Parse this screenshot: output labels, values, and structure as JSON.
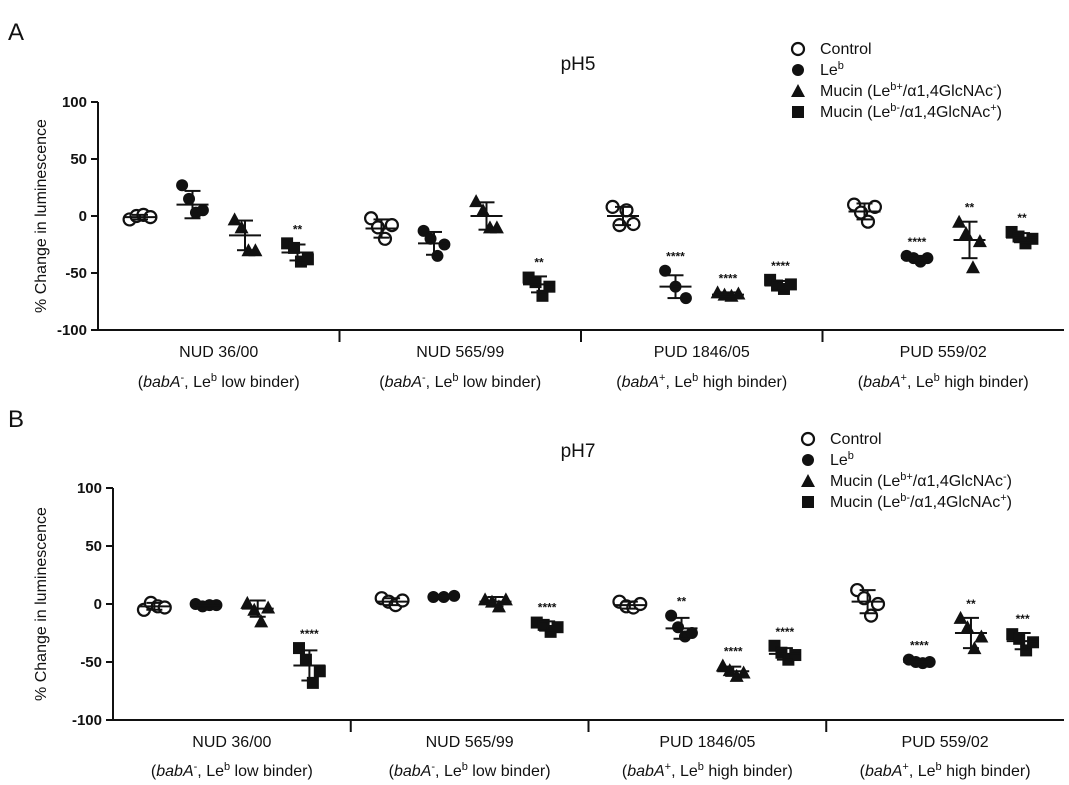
{
  "chart_data": [
    {
      "type": "scatter",
      "panel_label": "A",
      "title": "pH5",
      "ylabel": "% Change in luminescence",
      "ylim": [
        -100,
        100
      ],
      "yticks": [
        100,
        50,
        0,
        -50,
        -100
      ],
      "legend_position": "top-right",
      "legend": [
        {
          "marker": "circle-open",
          "parts": [
            {
              "t": "Control"
            }
          ]
        },
        {
          "marker": "circle",
          "parts": [
            {
              "t": "Le"
            },
            {
              "t": "b",
              "sup": true
            }
          ]
        },
        {
          "marker": "triangle",
          "parts": [
            {
              "t": "Mucin (Le"
            },
            {
              "t": "b+",
              "sup": true
            },
            {
              "t": "/α1,4GlcNAc"
            },
            {
              "t": "-",
              "sup": true
            },
            {
              "t": ")"
            }
          ]
        },
        {
          "marker": "square",
          "parts": [
            {
              "t": "Mucin (Le"
            },
            {
              "t": "b-",
              "sup": true
            },
            {
              "t": "/α1,4GlcNAc"
            },
            {
              "t": "+",
              "sup": true
            },
            {
              "t": ")"
            }
          ]
        }
      ],
      "groups": [
        {
          "name": "NUD 36/00",
          "subtitle": [
            {
              "t": "("
            },
            {
              "t": "babA",
              "i": true
            },
            {
              "t": "-",
              "sup": true
            },
            {
              "t": ", Le"
            },
            {
              "t": "b",
              "sup": true
            },
            {
              "t": " low binder)"
            }
          ],
          "series": [
            {
              "marker": "circle-open",
              "points": [
                -3,
                0,
                1,
                -1
              ],
              "mean": -1,
              "sd": 2,
              "sig": ""
            },
            {
              "marker": "circle",
              "points": [
                27,
                15,
                3,
                5
              ],
              "mean": 10,
              "sd": 12,
              "sig": ""
            },
            {
              "marker": "triangle",
              "points": [
                -3,
                -10,
                -30,
                -30
              ],
              "mean": -17,
              "sd": 13,
              "sig": ""
            },
            {
              "marker": "square",
              "points": [
                -24,
                -28,
                -40,
                -38
              ],
              "mean": -32,
              "sd": 7,
              "sig": "**"
            }
          ]
        },
        {
          "name": "NUD 565/99",
          "subtitle": [
            {
              "t": "("
            },
            {
              "t": "babA",
              "i": true
            },
            {
              "t": "-",
              "sup": true
            },
            {
              "t": ", Le"
            },
            {
              "t": "b",
              "sup": true
            },
            {
              "t": " low binder)"
            }
          ],
          "series": [
            {
              "marker": "circle-open",
              "points": [
                -2,
                -10,
                -20,
                -8
              ],
              "mean": -11,
              "sd": 8,
              "sig": ""
            },
            {
              "marker": "circle",
              "points": [
                -13,
                -20,
                -35,
                -25
              ],
              "mean": -24,
              "sd": 10,
              "sig": ""
            },
            {
              "marker": "triangle",
              "points": [
                13,
                5,
                -10,
                -10
              ],
              "mean": 0,
              "sd": 12,
              "sig": ""
            },
            {
              "marker": "square",
              "points": [
                -54,
                -58,
                -70,
                -62
              ],
              "mean": -60,
              "sd": 7,
              "sig": "**"
            }
          ]
        },
        {
          "name": "PUD 1846/05",
          "subtitle": [
            {
              "t": "("
            },
            {
              "t": "babA",
              "i": true
            },
            {
              "t": "+",
              "sup": true
            },
            {
              "t": ", Le"
            },
            {
              "t": "b",
              "sup": true
            },
            {
              "t": " high binder)"
            }
          ],
          "series": [
            {
              "marker": "circle-open",
              "points": [
                8,
                -8,
                5,
                -7
              ],
              "mean": 0,
              "sd": 8,
              "sig": ""
            },
            {
              "marker": "circle",
              "points": [
                -48,
                -62,
                -72
              ],
              "mean": -62,
              "sd": 10,
              "sig": "****"
            },
            {
              "marker": "triangle",
              "points": [
                -67,
                -69,
                -70,
                -68
              ],
              "mean": -69,
              "sd": 2,
              "sig": "****"
            },
            {
              "marker": "square",
              "points": [
                -56,
                -61,
                -64,
                -60
              ],
              "mean": -61,
              "sd": 4,
              "sig": "****"
            }
          ]
        },
        {
          "name": "PUD 559/02",
          "subtitle": [
            {
              "t": "("
            },
            {
              "t": "babA",
              "i": true
            },
            {
              "t": "+",
              "sup": true
            },
            {
              "t": ", Le"
            },
            {
              "t": "b",
              "sup": true
            },
            {
              "t": " high binder)"
            }
          ],
          "series": [
            {
              "marker": "circle-open",
              "points": [
                10,
                3,
                -5,
                8
              ],
              "mean": 4,
              "sd": 7,
              "sig": ""
            },
            {
              "marker": "circle",
              "points": [
                -35,
                -37,
                -40,
                -37
              ],
              "mean": -37,
              "sd": 2,
              "sig": "****"
            },
            {
              "marker": "triangle",
              "points": [
                -5,
                -15,
                -45,
                -22
              ],
              "mean": -21,
              "sd": 16,
              "sig": "**"
            },
            {
              "marker": "square",
              "points": [
                -14,
                -18,
                -24,
                -20
              ],
              "mean": -19,
              "sd": 4,
              "sig": "**"
            }
          ]
        }
      ]
    },
    {
      "type": "scatter",
      "panel_label": "B",
      "title": "pH7",
      "ylabel": "% Change in luminescence",
      "ylim": [
        -100,
        100
      ],
      "yticks": [
        100,
        50,
        0,
        -50,
        -100
      ],
      "legend_position": "top-right",
      "legend": [
        {
          "marker": "circle-open",
          "parts": [
            {
              "t": "Control"
            }
          ]
        },
        {
          "marker": "circle",
          "parts": [
            {
              "t": "Le"
            },
            {
              "t": "b",
              "sup": true
            }
          ]
        },
        {
          "marker": "triangle",
          "parts": [
            {
              "t": "Mucin (Le"
            },
            {
              "t": "b+",
              "sup": true
            },
            {
              "t": "/α1,4GlcNAc"
            },
            {
              "t": "-",
              "sup": true
            },
            {
              "t": ")"
            }
          ]
        },
        {
          "marker": "square",
          "parts": [
            {
              "t": "Mucin (Le"
            },
            {
              "t": "b-",
              "sup": true
            },
            {
              "t": "/α1,4GlcNAc"
            },
            {
              "t": "+",
              "sup": true
            },
            {
              "t": ")"
            }
          ]
        }
      ],
      "groups": [
        {
          "name": "NUD 36/00",
          "subtitle": [
            {
              "t": "("
            },
            {
              "t": "babA",
              "i": true
            },
            {
              "t": "-",
              "sup": true
            },
            {
              "t": ", Le"
            },
            {
              "t": "b",
              "sup": true
            },
            {
              "t": " low binder)"
            }
          ],
          "series": [
            {
              "marker": "circle-open",
              "points": [
                -5,
                1,
                -2,
                -3
              ],
              "mean": -2,
              "sd": 3,
              "sig": ""
            },
            {
              "marker": "circle",
              "points": [
                0,
                -2,
                -1,
                -1
              ],
              "mean": -1,
              "sd": 1,
              "sig": ""
            },
            {
              "marker": "triangle",
              "points": [
                1,
                -5,
                -15,
                -3
              ],
              "mean": -4,
              "sd": 7,
              "sig": ""
            },
            {
              "marker": "square",
              "points": [
                -38,
                -48,
                -68,
                -58
              ],
              "mean": -53,
              "sd": 13,
              "sig": "****"
            }
          ]
        },
        {
          "name": "NUD 565/99",
          "subtitle": [
            {
              "t": "("
            },
            {
              "t": "babA",
              "i": true
            },
            {
              "t": "-",
              "sup": true
            },
            {
              "t": ", Le"
            },
            {
              "t": "b",
              "sup": true
            },
            {
              "t": " low binder)"
            }
          ],
          "series": [
            {
              "marker": "circle-open",
              "points": [
                5,
                2,
                -1,
                3
              ],
              "mean": 2,
              "sd": 3,
              "sig": ""
            },
            {
              "marker": "circle",
              "points": [
                6,
                6,
                7
              ],
              "mean": 6,
              "sd": 1,
              "sig": ""
            },
            {
              "marker": "triangle",
              "points": [
                4,
                2,
                -2,
                4
              ],
              "mean": 2,
              "sd": 4,
              "sig": ""
            },
            {
              "marker": "square",
              "points": [
                -16,
                -18,
                -24,
                -20
              ],
              "mean": -19,
              "sd": 4,
              "sig": "****"
            }
          ]
        },
        {
          "name": "PUD 1846/05",
          "subtitle": [
            {
              "t": "("
            },
            {
              "t": "babA",
              "i": true
            },
            {
              "t": "+",
              "sup": true
            },
            {
              "t": ", Le"
            },
            {
              "t": "b",
              "sup": true
            },
            {
              "t": " high binder)"
            }
          ],
          "series": [
            {
              "marker": "circle-open",
              "points": [
                2,
                -2,
                -3,
                0
              ],
              "mean": -1,
              "sd": 3,
              "sig": ""
            },
            {
              "marker": "circle",
              "points": [
                -10,
                -20,
                -28,
                -25
              ],
              "mean": -21,
              "sd": 9,
              "sig": "**"
            },
            {
              "marker": "triangle",
              "points": [
                -53,
                -57,
                -62,
                -59
              ],
              "mean": -58,
              "sd": 4,
              "sig": "****"
            },
            {
              "marker": "square",
              "points": [
                -36,
                -42,
                -48,
                -44
              ],
              "mean": -43,
              "sd": 5,
              "sig": "****"
            }
          ]
        },
        {
          "name": "PUD 559/02",
          "subtitle": [
            {
              "t": "("
            },
            {
              "t": "babA",
              "i": true
            },
            {
              "t": "+",
              "sup": true
            },
            {
              "t": ", Le"
            },
            {
              "t": "b",
              "sup": true
            },
            {
              "t": " high binder)"
            }
          ],
          "series": [
            {
              "marker": "circle-open",
              "points": [
                12,
                5,
                -10,
                0
              ],
              "mean": 2,
              "sd": 10,
              "sig": ""
            },
            {
              "marker": "circle",
              "points": [
                -48,
                -50,
                -51,
                -50
              ],
              "mean": -50,
              "sd": 2,
              "sig": "****"
            },
            {
              "marker": "triangle",
              "points": [
                -12,
                -20,
                -38,
                -28
              ],
              "mean": -25,
              "sd": 13,
              "sig": "**"
            },
            {
              "marker": "square",
              "points": [
                -26,
                -30,
                -40,
                -33
              ],
              "mean": -32,
              "sd": 7,
              "sig": "***"
            }
          ]
        }
      ]
    }
  ]
}
